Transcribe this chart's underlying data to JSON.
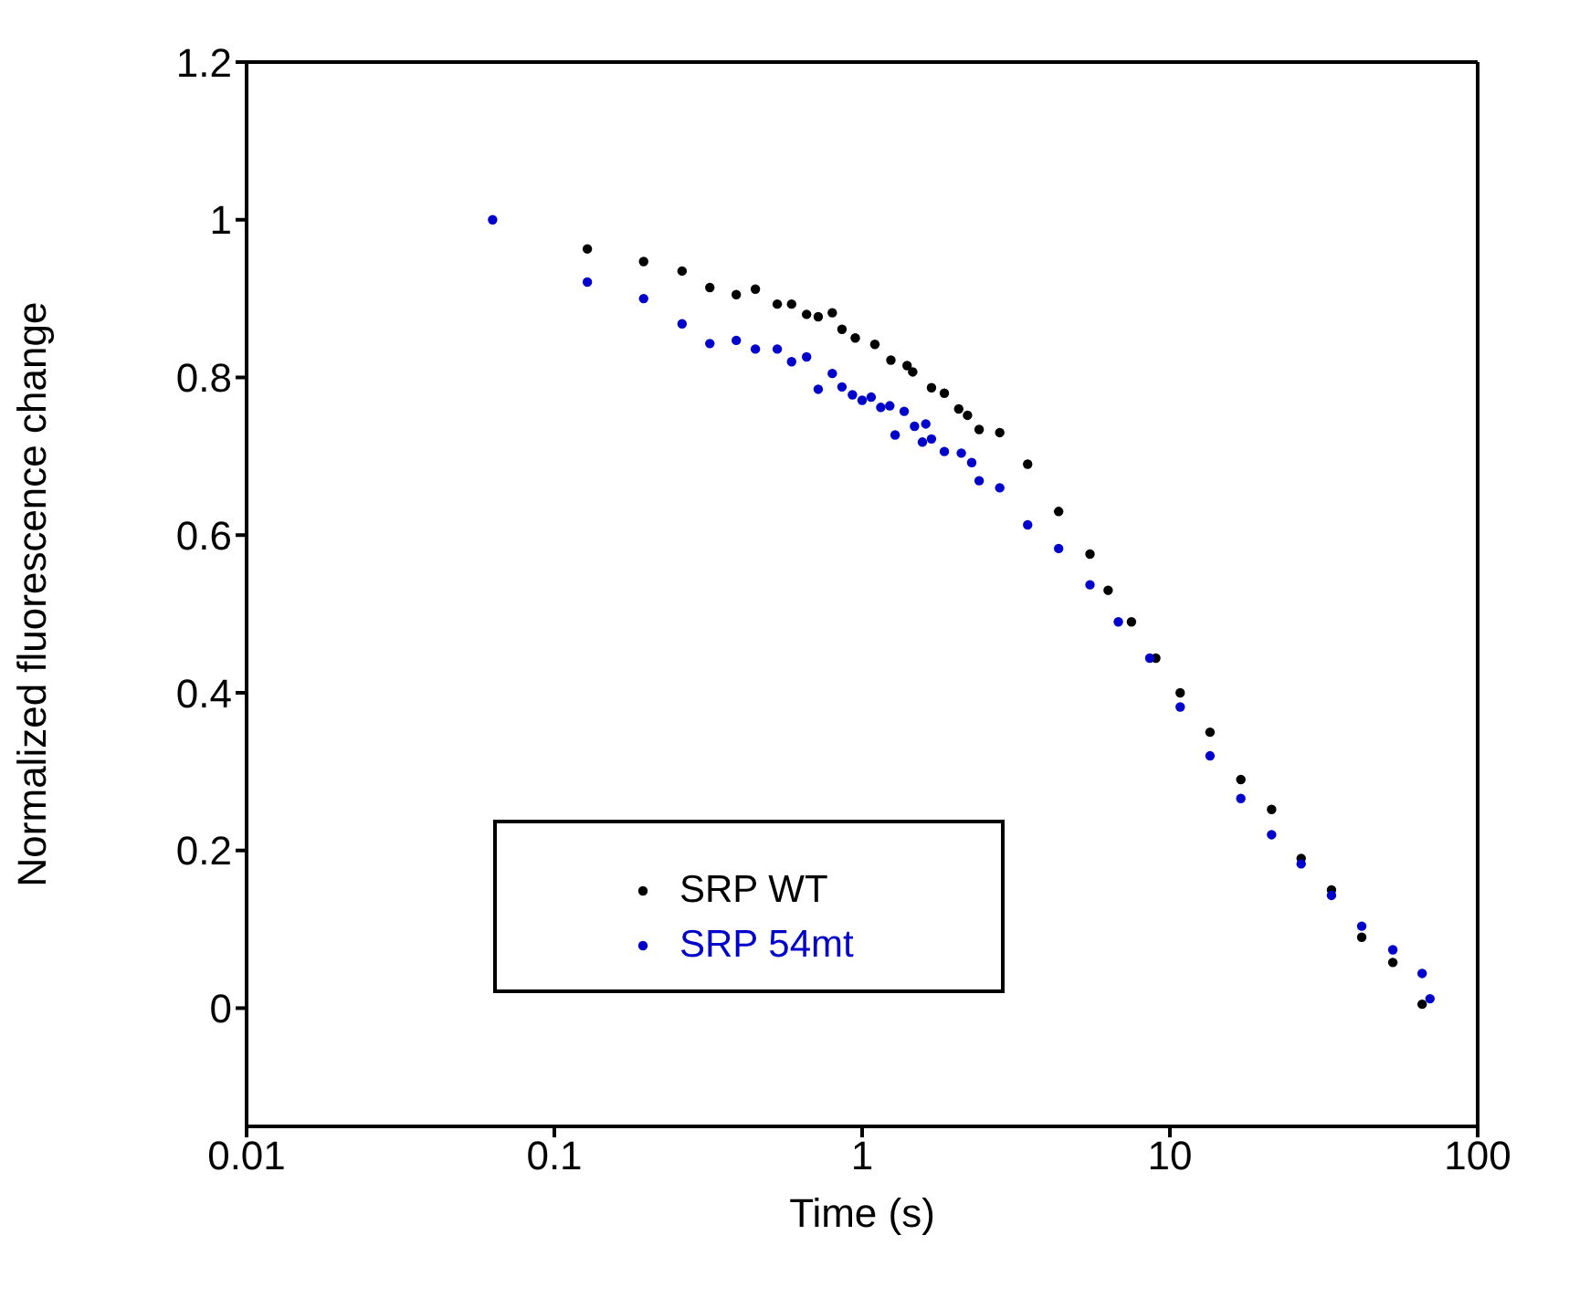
{
  "chart_data": {
    "type": "scatter",
    "xlabel": "Time (s)",
    "ylabel": "Normalized fluorescence change",
    "log": "x",
    "marker": "circle",
    "grid": false,
    "legend": "bottom left",
    "xlim": [
      0.01,
      100
    ],
    "xticks": [
      0.01,
      0.1,
      1,
      10,
      100
    ],
    "ylim": [
      -0.15,
      1.2
    ],
    "yticks": [
      0,
      0.2,
      0.4,
      0.6,
      0.8,
      1,
      1.2
    ],
    "series": [
      {
        "name": "SRP WT",
        "color": "#000000",
        "x": [
          0.128,
          0.195,
          0.26,
          0.32,
          0.39,
          0.45,
          0.53,
          0.59,
          0.66,
          0.72,
          0.8,
          0.86,
          0.95,
          1.1,
          1.24,
          1.4,
          1.46,
          1.68,
          1.85,
          2.06,
          2.2,
          2.4,
          2.8,
          3.45,
          4.35,
          5.5,
          6.3,
          7.5,
          9,
          10.8,
          13.5,
          17,
          21.4,
          26.7,
          33.5,
          42,
          53,
          66
        ],
        "values": [
          0.963,
          0.947,
          0.935,
          0.914,
          0.905,
          0.912,
          0.893,
          0.893,
          0.88,
          0.877,
          0.882,
          0.861,
          0.85,
          0.842,
          0.822,
          0.815,
          0.807,
          0.787,
          0.78,
          0.76,
          0.752,
          0.734,
          0.73,
          0.69,
          0.63,
          0.576,
          0.53,
          0.49,
          0.444,
          0.4,
          0.35,
          0.29,
          0.252,
          0.19,
          0.15,
          0.09,
          0.058,
          0.005
        ]
      },
      {
        "name": "SRP 54mt",
        "color": "#0000cc",
        "x": [
          0.063,
          0.128,
          0.195,
          0.26,
          0.32,
          0.39,
          0.45,
          0.53,
          0.59,
          0.66,
          0.72,
          0.8,
          0.86,
          0.93,
          1.0,
          1.07,
          1.15,
          1.23,
          1.28,
          1.37,
          1.48,
          1.57,
          1.61,
          1.68,
          1.85,
          2.1,
          2.27,
          2.4,
          2.8,
          3.45,
          4.35,
          5.5,
          6.8,
          8.6,
          10.8,
          13.5,
          17,
          21.4,
          26.7,
          33.5,
          42,
          53,
          66,
          70
        ],
        "values": [
          1.0,
          0.921,
          0.9,
          0.868,
          0.843,
          0.847,
          0.836,
          0.836,
          0.82,
          0.826,
          0.785,
          0.805,
          0.788,
          0.778,
          0.771,
          0.775,
          0.762,
          0.764,
          0.727,
          0.757,
          0.738,
          0.718,
          0.741,
          0.722,
          0.706,
          0.704,
          0.692,
          0.669,
          0.66,
          0.613,
          0.583,
          0.537,
          0.49,
          0.444,
          0.382,
          0.32,
          0.266,
          0.22,
          0.183,
          0.143,
          0.104,
          0.074,
          0.044,
          0.012
        ]
      }
    ]
  }
}
